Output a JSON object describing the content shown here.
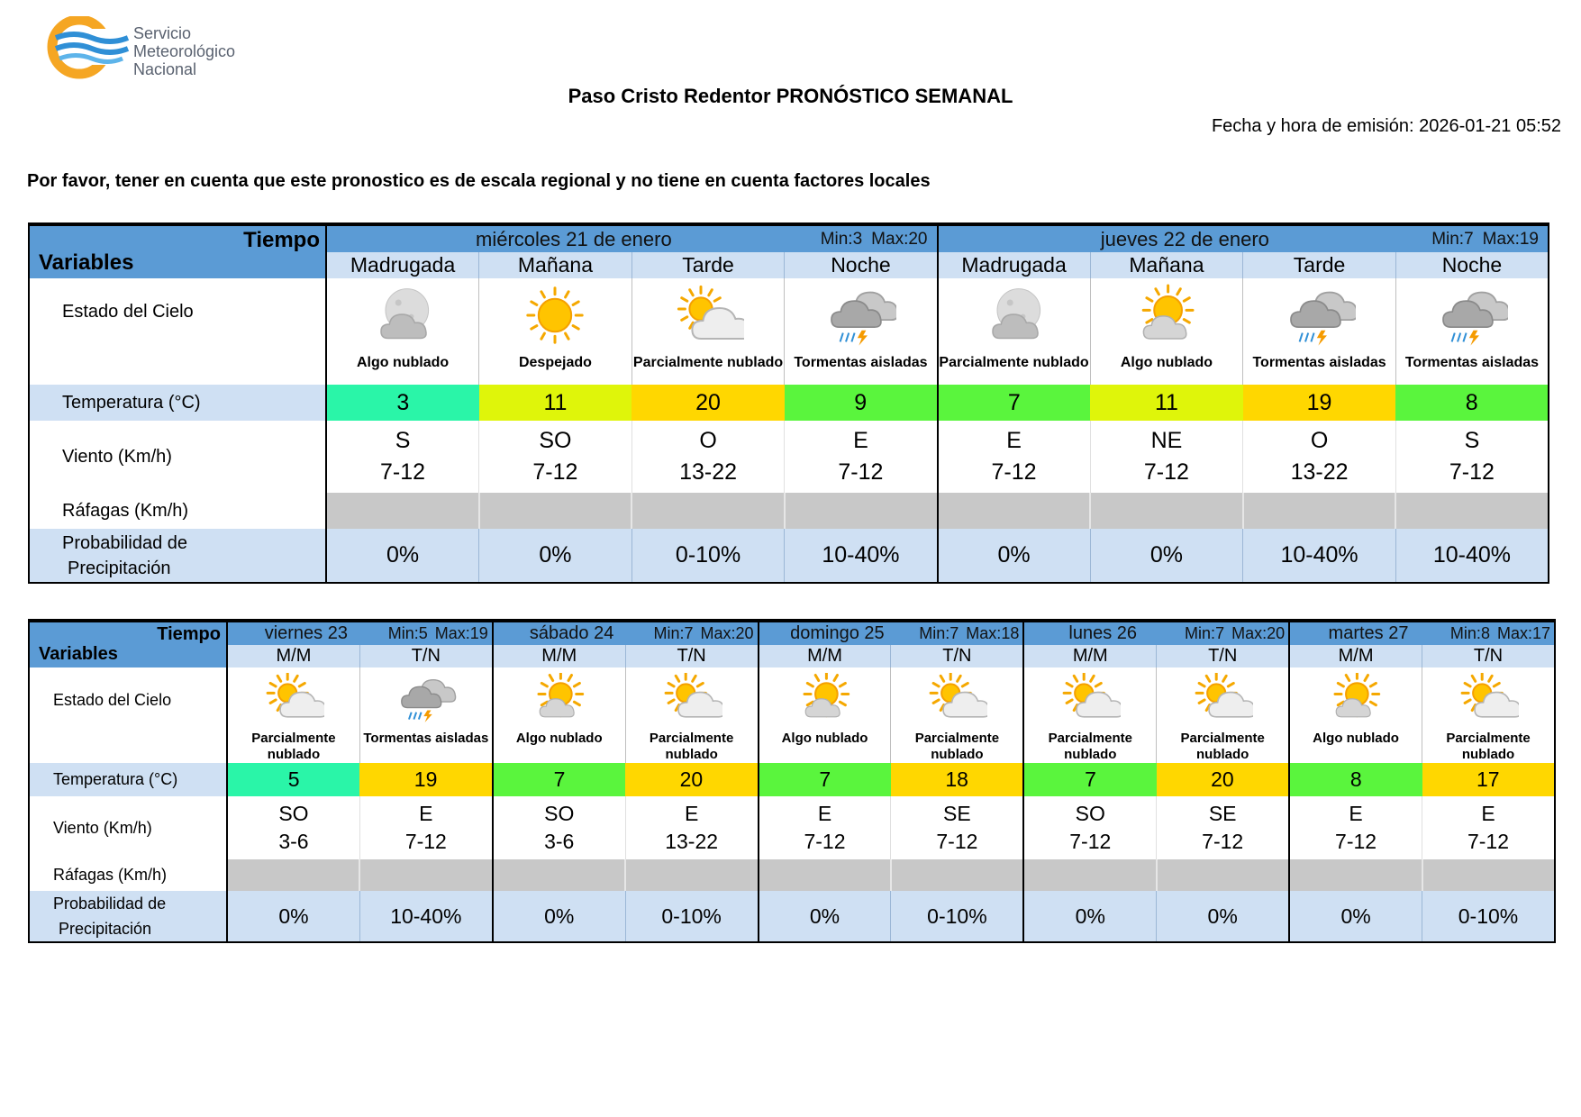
{
  "header": {
    "org_name_lines": [
      "Servicio",
      "Meteorológico",
      "Nacional"
    ],
    "title": "Paso Cristo Redentor PRONÓSTICO SEMANAL",
    "emission": "Fecha y hora de emisión: 2026-01-21 05:52",
    "notice": "Por favor, tener en cuenta que este pronostico es de escala regional y no tiene en cuenta factores locales"
  },
  "colors": {
    "brand_orange": "#f5a623",
    "brand_blue": "#2f8fd6",
    "header_blue": "#5b9bd5",
    "light_blue": "#cfe0f3",
    "gust_gray": "#c8c8c8"
  },
  "labels": {
    "tiempo": "Tiempo",
    "variables": "Variables",
    "estado": "Estado del Cielo",
    "temperatura": "Temperatura (°C)",
    "viento": "Viento (Km/h)",
    "rafagas": "Ráfagas (Km/h)",
    "precip_line1": "Probabilidad de",
    "precip_line2": "Precipitación",
    "min": "Min:",
    "max": "Max:"
  },
  "week1": [
    {
      "day": "miércoles 21 de enero",
      "min": "3",
      "max": "20",
      "periods": [
        {
          "name": "Madrugada",
          "icon": "moon-cloud-icon",
          "desc": "Algo nublado",
          "temp": "3",
          "temp_color": "#2af5a8",
          "wind_dir": "S",
          "wind_speed": "7-12",
          "gust": "",
          "precip": "0%"
        },
        {
          "name": "Mañana",
          "icon": "sun-icon",
          "desc": "Despejado",
          "temp": "11",
          "temp_color": "#dff50a",
          "wind_dir": "SO",
          "wind_speed": "7-12",
          "gust": "",
          "precip": "0%"
        },
        {
          "name": "Tarde",
          "icon": "partly-cloudy-icon",
          "desc": "Parcialmente nublado",
          "temp": "20",
          "temp_color": "#ffd700",
          "wind_dir": "O",
          "wind_speed": "13-22",
          "gust": "",
          "precip": "0-10%"
        },
        {
          "name": "Noche",
          "icon": "storm-icon",
          "desc": "Tormentas aisladas",
          "temp": "9",
          "temp_color": "#5af53d",
          "wind_dir": "E",
          "wind_speed": "7-12",
          "gust": "",
          "precip": "10-40%"
        }
      ]
    },
    {
      "day": "jueves 22 de enero",
      "min": "7",
      "max": "19",
      "periods": [
        {
          "name": "Madrugada",
          "icon": "moon-cloud-icon",
          "desc": "Parcialmente nublado",
          "temp": "7",
          "temp_color": "#5af53d",
          "wind_dir": "E",
          "wind_speed": "7-12",
          "gust": "",
          "precip": "0%"
        },
        {
          "name": "Mañana",
          "icon": "sun-cloud-icon",
          "desc": "Algo nublado",
          "temp": "11",
          "temp_color": "#dff50a",
          "wind_dir": "NE",
          "wind_speed": "7-12",
          "gust": "",
          "precip": "0%"
        },
        {
          "name": "Tarde",
          "icon": "storm-icon",
          "desc": "Tormentas aisladas",
          "temp": "19",
          "temp_color": "#ffd700",
          "wind_dir": "O",
          "wind_speed": "13-22",
          "gust": "",
          "precip": "10-40%"
        },
        {
          "name": "Noche",
          "icon": "storm-icon",
          "desc": "Tormentas aisladas",
          "temp": "8",
          "temp_color": "#5af53d",
          "wind_dir": "S",
          "wind_speed": "7-12",
          "gust": "",
          "precip": "10-40%"
        }
      ]
    }
  ],
  "week2": [
    {
      "day": "viernes 23",
      "min": "5",
      "max": "19",
      "periods": [
        {
          "name": "M/M",
          "icon": "partly-cloudy-icon",
          "desc": "Parcialmente nublado",
          "temp": "5",
          "temp_color": "#2af5a8",
          "wind_dir": "SO",
          "wind_speed": "3-6",
          "gust": "",
          "precip": "0%"
        },
        {
          "name": "T/N",
          "icon": "storm-icon",
          "desc": "Tormentas aisladas",
          "temp": "19",
          "temp_color": "#ffd700",
          "wind_dir": "E",
          "wind_speed": "7-12",
          "gust": "",
          "precip": "10-40%"
        }
      ]
    },
    {
      "day": "sábado 24",
      "min": "7",
      "max": "20",
      "periods": [
        {
          "name": "M/M",
          "icon": "sun-cloud-icon",
          "desc": "Algo nublado",
          "temp": "7",
          "temp_color": "#5af53d",
          "wind_dir": "SO",
          "wind_speed": "3-6",
          "gust": "",
          "precip": "0%"
        },
        {
          "name": "T/N",
          "icon": "partly-cloudy-icon",
          "desc": "Parcialmente nublado",
          "temp": "20",
          "temp_color": "#ffd700",
          "wind_dir": "E",
          "wind_speed": "13-22",
          "gust": "",
          "precip": "0-10%"
        }
      ]
    },
    {
      "day": "domingo 25",
      "min": "7",
      "max": "18",
      "periods": [
        {
          "name": "M/M",
          "icon": "sun-cloud-icon",
          "desc": "Algo nublado",
          "temp": "7",
          "temp_color": "#5af53d",
          "wind_dir": "E",
          "wind_speed": "7-12",
          "gust": "",
          "precip": "0%"
        },
        {
          "name": "T/N",
          "icon": "partly-cloudy-icon",
          "desc": "Parcialmente nublado",
          "temp": "18",
          "temp_color": "#ffd700",
          "wind_dir": "SE",
          "wind_speed": "7-12",
          "gust": "",
          "precip": "0-10%"
        }
      ]
    },
    {
      "day": "lunes 26",
      "min": "7",
      "max": "20",
      "periods": [
        {
          "name": "M/M",
          "icon": "partly-cloudy-icon",
          "desc": "Parcialmente nublado",
          "temp": "7",
          "temp_color": "#5af53d",
          "wind_dir": "SO",
          "wind_speed": "7-12",
          "gust": "",
          "precip": "0%"
        },
        {
          "name": "T/N",
          "icon": "partly-cloudy-icon",
          "desc": "Parcialmente nublado",
          "temp": "20",
          "temp_color": "#ffd700",
          "wind_dir": "SE",
          "wind_speed": "7-12",
          "gust": "",
          "precip": "0%"
        }
      ]
    },
    {
      "day": "martes 27",
      "min": "8",
      "max": "17",
      "periods": [
        {
          "name": "M/M",
          "icon": "sun-cloud-icon",
          "desc": "Algo nublado",
          "temp": "8",
          "temp_color": "#5af53d",
          "wind_dir": "E",
          "wind_speed": "7-12",
          "gust": "",
          "precip": "0%"
        },
        {
          "name": "T/N",
          "icon": "partly-cloudy-icon",
          "desc": "Parcialmente nublado",
          "temp": "17",
          "temp_color": "#ffd700",
          "wind_dir": "E",
          "wind_speed": "7-12",
          "gust": "",
          "precip": "0-10%"
        }
      ]
    }
  ]
}
